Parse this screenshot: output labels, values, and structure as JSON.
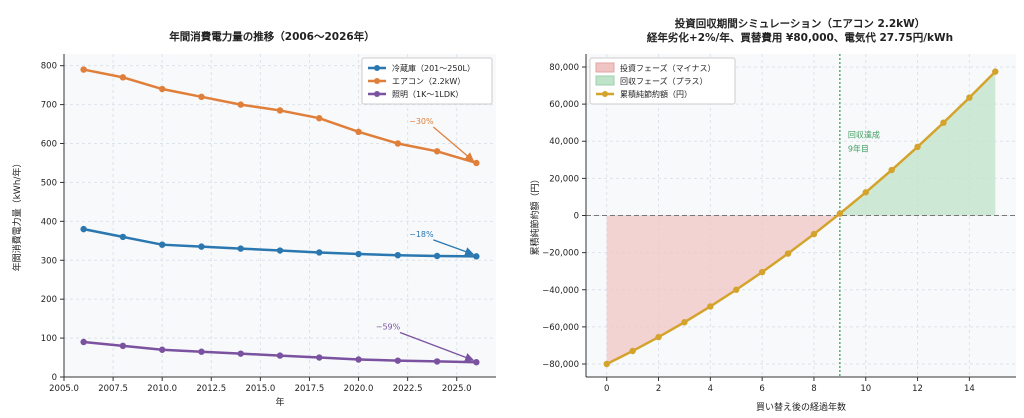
{
  "chart_data": [
    {
      "type": "line",
      "title": "年間消費電力量の推移（2006〜2026年）",
      "xlabel": "年",
      "ylabel": "年間消費電力量（kWh/年）",
      "xlim": [
        2005,
        2027
      ],
      "ylim": [
        0,
        830
      ],
      "x_ticks": [
        2005.0,
        2007.5,
        2010.0,
        2012.5,
        2015.0,
        2017.5,
        2020.0,
        2022.5,
        2025.0
      ],
      "x_tick_labels": [
        "2005.0",
        "2007.5",
        "2010.0",
        "2012.5",
        "2015.0",
        "2017.5",
        "2020.0",
        "2022.5",
        "2025.0"
      ],
      "y_ticks": [
        0,
        100,
        200,
        300,
        400,
        500,
        600,
        700,
        800
      ],
      "y_tick_labels": [
        "0",
        "100",
        "200",
        "300",
        "400",
        "500",
        "600",
        "700",
        "800"
      ],
      "x": [
        2006,
        2008,
        2010,
        2012,
        2014,
        2016,
        2018,
        2020,
        2022,
        2024,
        2026
      ],
      "series": [
        {
          "name": "冷蔵庫（201〜250L）",
          "color": "#2b77b0",
          "values": [
            380,
            360,
            340,
            335,
            330,
            325,
            320,
            316,
            313,
            311,
            310
          ]
        },
        {
          "name": "エアコン（2.2kW）",
          "color": "#e07f3a",
          "values": [
            790,
            770,
            740,
            720,
            700,
            685,
            665,
            630,
            600,
            580,
            550
          ]
        },
        {
          "name": "照明（1K〜1LDK）",
          "color": "#7a52a0",
          "values": [
            90,
            80,
            70,
            65,
            60,
            55,
            50,
            45,
            42,
            40,
            38
          ]
        }
      ],
      "annotations": [
        {
          "text": "−30%",
          "series": 1,
          "x": 2023.2,
          "y": 650
        },
        {
          "text": "−18%",
          "series": 0,
          "x": 2023.2,
          "y": 360
        },
        {
          "text": "−59%",
          "series": 2,
          "x": 2021.5,
          "y": 122
        }
      ],
      "legend": "top-right"
    },
    {
      "type": "area",
      "title": "投資回収期間シミュレーション（エアコン 2.2kW）",
      "subtitle": "経年劣化+2%/年、買替費用 ¥80,000、電気代 27.75円/kWh",
      "xlabel": "買い替え後の経過年数",
      "ylabel": "累積純節約額（円）",
      "xlim": [
        -0.8,
        15.8
      ],
      "ylim": [
        -87000,
        87000
      ],
      "x_ticks": [
        0,
        2,
        4,
        6,
        8,
        10,
        12,
        14
      ],
      "x_tick_labels": [
        "0",
        "2",
        "4",
        "6",
        "8",
        "10",
        "12",
        "14"
      ],
      "y_ticks": [
        -80000,
        -60000,
        -40000,
        -20000,
        0,
        20000,
        40000,
        60000,
        80000
      ],
      "y_tick_labels": [
        "−80,000",
        "−60,000",
        "−40,000",
        "−20,000",
        "0",
        "20,000",
        "40,000",
        "60,000",
        "80,000"
      ],
      "x": [
        0,
        1,
        2,
        3,
        4,
        5,
        6,
        7,
        8,
        9,
        10,
        11,
        12,
        13,
        14,
        15
      ],
      "values": [
        -80000,
        -73000,
        -65500,
        -57500,
        -49000,
        -40000,
        -30500,
        -20500,
        -10000,
        1000,
        12500,
        24500,
        37000,
        50000,
        63500,
        77500
      ],
      "payback_year": 9,
      "payback_label_line1": "回収達成",
      "payback_label_line2": "9年目",
      "legend_items": [
        "投資フェーズ（マイナス）",
        "回収フェーズ（プラス）",
        "累積純節約額（円）"
      ],
      "colors": {
        "line": "#d4a32c",
        "neg_fill": "#f1c4c4",
        "pos_fill": "#bfe3c8",
        "payback": "#3f9f5f"
      },
      "legend": "top-left"
    }
  ]
}
